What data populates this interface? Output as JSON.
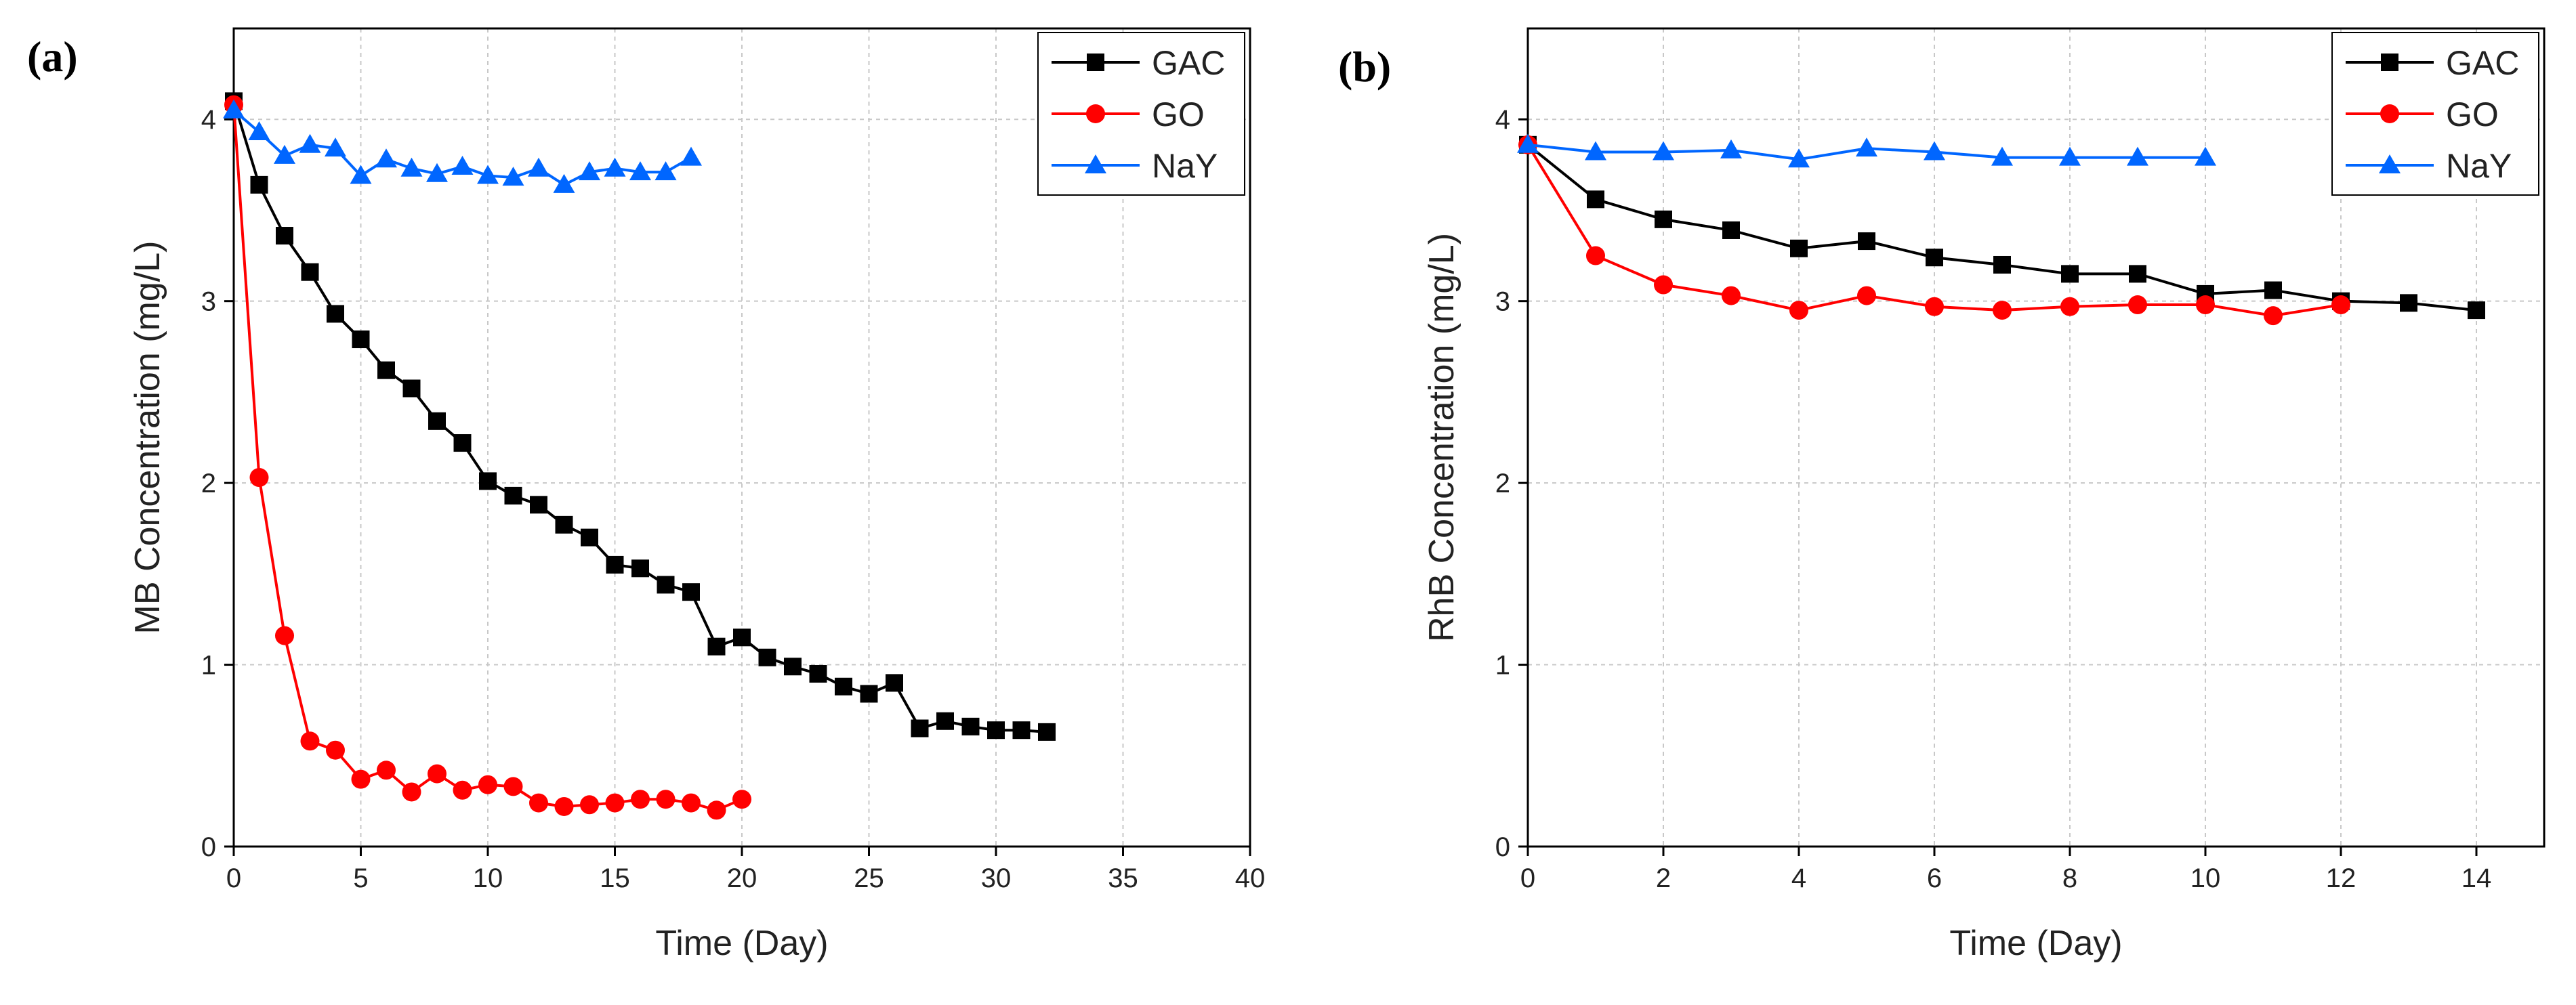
{
  "chart_data": [
    {
      "type": "line",
      "panel_label": "(a)",
      "title": "",
      "xlabel": "Time (Day)",
      "ylabel": "MB Concentration (mg/L)",
      "xlim": [
        0,
        40
      ],
      "ylim": [
        0,
        4.5
      ],
      "xticks": [
        0,
        5,
        10,
        15,
        20,
        25,
        30,
        35,
        40
      ],
      "yticks": [
        0,
        1,
        2,
        3,
        4
      ],
      "grid": true,
      "legend_position": "top-right",
      "series": [
        {
          "name": "GAC",
          "color": "#000000",
          "marker": "square",
          "x": [
            0,
            1,
            2,
            3,
            4,
            5,
            6,
            7,
            8,
            9,
            10,
            11,
            12,
            13,
            14,
            15,
            16,
            17,
            18,
            19,
            20,
            21,
            22,
            23,
            24,
            25,
            26,
            27,
            28,
            29,
            30,
            31,
            32
          ],
          "y": [
            4.1,
            3.64,
            3.36,
            3.16,
            2.93,
            2.79,
            2.62,
            2.52,
            2.34,
            2.22,
            2.01,
            1.93,
            1.88,
            1.77,
            1.7,
            1.55,
            1.53,
            1.44,
            1.4,
            1.1,
            1.15,
            1.04,
            0.99,
            0.95,
            0.88,
            0.84,
            0.9,
            0.65,
            0.69,
            0.66,
            0.64,
            0.64,
            0.63
          ]
        },
        {
          "name": "GO",
          "color": "#ff0000",
          "marker": "circle",
          "x": [
            0,
            1,
            2,
            3,
            4,
            5,
            6,
            7,
            8,
            9,
            10,
            11,
            12,
            13,
            14,
            15,
            16,
            17,
            18,
            19,
            20
          ],
          "y": [
            4.08,
            2.03,
            1.16,
            0.58,
            0.53,
            0.37,
            0.42,
            0.3,
            0.4,
            0.31,
            0.34,
            0.33,
            0.24,
            0.22,
            0.23,
            0.24,
            0.26,
            0.26,
            0.24,
            0.2,
            0.26
          ]
        },
        {
          "name": "NaY",
          "color": "#0066ff",
          "marker": "triangle",
          "x": [
            0,
            1,
            2,
            3,
            4,
            5,
            6,
            7,
            8,
            9,
            10,
            11,
            12,
            13,
            14,
            15,
            16,
            17,
            18
          ],
          "y": [
            4.05,
            3.93,
            3.8,
            3.86,
            3.84,
            3.69,
            3.78,
            3.73,
            3.7,
            3.74,
            3.69,
            3.68,
            3.73,
            3.64,
            3.71,
            3.73,
            3.71,
            3.71,
            3.79
          ]
        }
      ]
    },
    {
      "type": "line",
      "panel_label": "(b)",
      "title": "",
      "xlabel": "Time (Day)",
      "ylabel": "RhB Concentration (mg/L)",
      "xlim": [
        0,
        15
      ],
      "ylim": [
        0,
        4.5
      ],
      "xticks": [
        0,
        2,
        4,
        6,
        8,
        10,
        12,
        14
      ],
      "yticks": [
        0,
        1,
        2,
        3,
        4
      ],
      "grid": true,
      "legend_position": "top-right",
      "series": [
        {
          "name": "GAC",
          "color": "#000000",
          "marker": "square",
          "x": [
            0,
            1,
            2,
            3,
            4,
            5,
            6,
            7,
            8,
            9,
            10,
            11,
            12,
            13,
            14
          ],
          "y": [
            3.86,
            3.56,
            3.45,
            3.39,
            3.29,
            3.33,
            3.24,
            3.2,
            3.15,
            3.15,
            3.04,
            3.06,
            3.0,
            2.99,
            2.95
          ]
        },
        {
          "name": "GO",
          "color": "#ff0000",
          "marker": "circle",
          "x": [
            0,
            1,
            2,
            3,
            4,
            5,
            6,
            7,
            8,
            9,
            10,
            11,
            12
          ],
          "y": [
            3.86,
            3.25,
            3.09,
            3.03,
            2.95,
            3.03,
            2.97,
            2.95,
            2.97,
            2.98,
            2.98,
            2.92,
            2.98
          ]
        },
        {
          "name": "NaY",
          "color": "#0066ff",
          "marker": "triangle",
          "x": [
            0,
            1,
            2,
            3,
            4,
            5,
            6,
            7,
            8,
            9,
            10
          ],
          "y": [
            3.86,
            3.82,
            3.82,
            3.83,
            3.78,
            3.84,
            3.82,
            3.79,
            3.79,
            3.79,
            3.79
          ]
        }
      ]
    }
  ]
}
